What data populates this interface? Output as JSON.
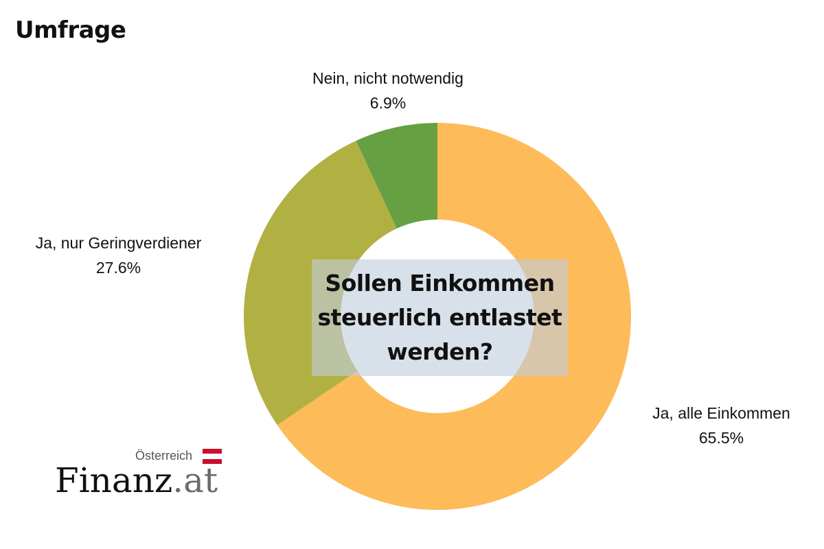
{
  "header": {
    "title": "Umfrage"
  },
  "chart_data": {
    "type": "pie",
    "title": "Sollen Einkommen steuerlich entlastet werden?",
    "donut": true,
    "slices": [
      {
        "label": "Ja, alle Einkommen",
        "value": 65.5,
        "value_label": "65.5%",
        "color": "#FDBB5A"
      },
      {
        "label": "Ja, nur Geringverdiener",
        "value": 27.6,
        "value_label": "27.6%",
        "color": "#B1B043"
      },
      {
        "label": "Nein, nicht notwendig",
        "value": 6.9,
        "value_label": "6.9%",
        "color": "#66A042"
      }
    ]
  },
  "logo": {
    "country": "Österreich",
    "name_main": "Finanz",
    "name_suffix": ".at",
    "flag_colors": [
      "#C8102E",
      "#FFFFFF",
      "#C8102E"
    ]
  }
}
